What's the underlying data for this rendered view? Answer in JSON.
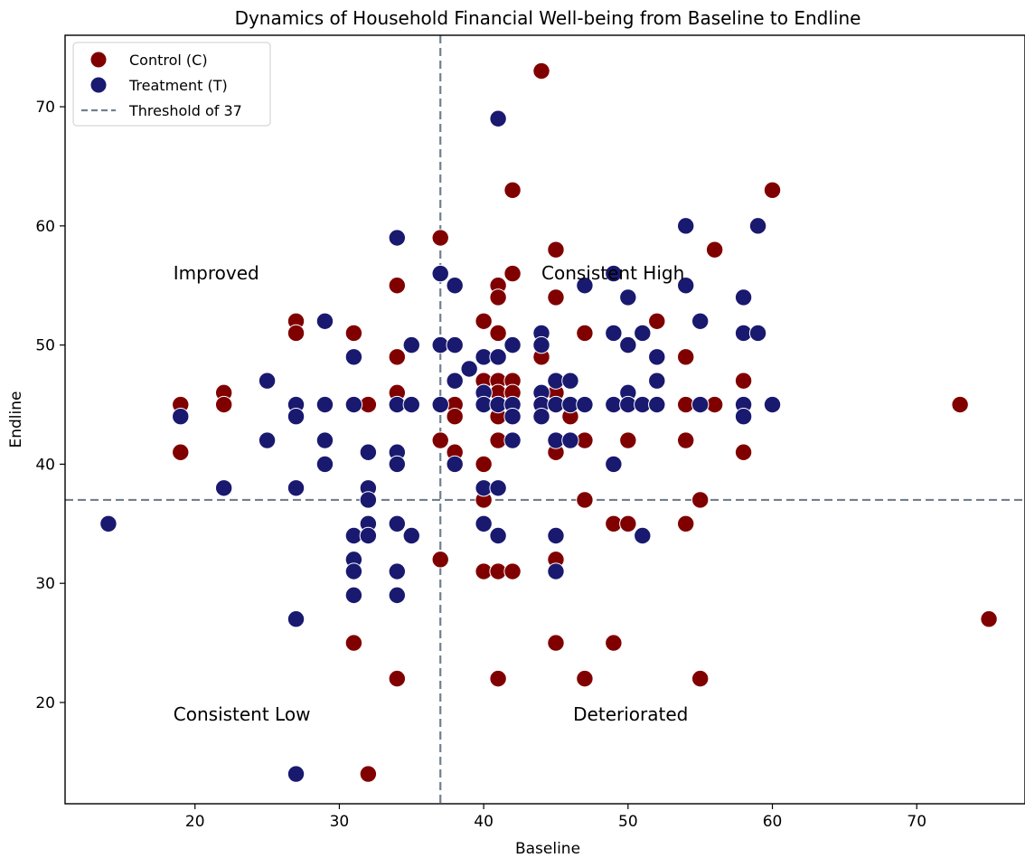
{
  "chart_data": {
    "type": "scatter",
    "title": "Dynamics of Household Financial Well-being from Baseline to Endline",
    "xlabel": "Baseline",
    "ylabel": "Endline",
    "xlim": [
      11,
      77.5
    ],
    "ylim": [
      11.5,
      76
    ],
    "xticks": [
      20,
      30,
      40,
      50,
      60,
      70
    ],
    "yticks": [
      20,
      30,
      40,
      50,
      60,
      70
    ],
    "threshold": 37,
    "legend": {
      "position": "top-left",
      "entries": [
        "Control (C)",
        "Treatment (T)",
        "Threshold of 37"
      ]
    },
    "quadrant_labels": [
      {
        "text": "Improved",
        "x": 18.5,
        "y": 55.5
      },
      {
        "text": "Consistent High",
        "x": 44,
        "y": 55.5
      },
      {
        "text": "Consistent Low",
        "x": 18.5,
        "y": 18.5
      },
      {
        "text": "Deteriorated",
        "x": 46.2,
        "y": 18.5
      }
    ],
    "colors": {
      "control": "#800000",
      "treatment": "#191970",
      "threshold": "#708090"
    },
    "series": [
      {
        "name": "Control (C)",
        "points": [
          [
            19,
            45
          ],
          [
            19,
            41
          ],
          [
            22,
            46
          ],
          [
            22,
            45
          ],
          [
            27,
            52
          ],
          [
            27,
            51
          ],
          [
            31,
            51
          ],
          [
            31,
            45
          ],
          [
            32,
            45
          ],
          [
            31,
            25
          ],
          [
            32,
            14
          ],
          [
            34,
            55
          ],
          [
            34,
            49
          ],
          [
            34,
            46
          ],
          [
            34,
            22
          ],
          [
            37,
            59
          ],
          [
            37,
            42
          ],
          [
            37,
            32
          ],
          [
            38,
            45
          ],
          [
            38,
            44
          ],
          [
            38,
            41
          ],
          [
            40,
            52
          ],
          [
            40,
            47
          ],
          [
            40,
            46
          ],
          [
            40,
            40
          ],
          [
            40,
            37
          ],
          [
            40,
            31
          ],
          [
            41,
            55
          ],
          [
            41,
            54
          ],
          [
            41,
            51
          ],
          [
            41,
            47
          ],
          [
            41,
            46
          ],
          [
            41,
            45
          ],
          [
            41,
            44
          ],
          [
            41,
            42
          ],
          [
            41,
            31
          ],
          [
            41,
            22
          ],
          [
            42,
            63
          ],
          [
            42,
            56
          ],
          [
            42,
            47
          ],
          [
            42,
            46
          ],
          [
            42,
            31
          ],
          [
            44,
            73
          ],
          [
            44,
            49
          ],
          [
            45,
            58
          ],
          [
            45,
            54
          ],
          [
            45,
            46
          ],
          [
            45,
            41
          ],
          [
            45,
            32
          ],
          [
            45,
            25
          ],
          [
            46,
            44
          ],
          [
            47,
            51
          ],
          [
            47,
            42
          ],
          [
            47,
            37
          ],
          [
            47,
            22
          ],
          [
            49,
            35
          ],
          [
            49,
            25
          ],
          [
            50,
            42
          ],
          [
            50,
            35
          ],
          [
            52,
            52
          ],
          [
            54,
            49
          ],
          [
            54,
            45
          ],
          [
            54,
            42
          ],
          [
            54,
            35
          ],
          [
            55,
            37
          ],
          [
            55,
            22
          ],
          [
            56,
            58
          ],
          [
            56,
            45
          ],
          [
            58,
            47
          ],
          [
            58,
            41
          ],
          [
            60,
            63
          ],
          [
            73,
            45
          ],
          [
            75,
            27
          ]
        ]
      },
      {
        "name": "Treatment (T)",
        "points": [
          [
            14,
            35
          ],
          [
            19,
            44
          ],
          [
            22,
            38
          ],
          [
            25,
            47
          ],
          [
            25,
            42
          ],
          [
            27,
            45
          ],
          [
            27,
            44
          ],
          [
            27,
            38
          ],
          [
            27,
            27
          ],
          [
            27,
            14
          ],
          [
            29,
            52
          ],
          [
            29,
            45
          ],
          [
            29,
            42
          ],
          [
            29,
            40
          ],
          [
            31,
            49
          ],
          [
            31,
            45
          ],
          [
            31,
            34
          ],
          [
            31,
            32
          ],
          [
            31,
            31
          ],
          [
            31,
            29
          ],
          [
            32,
            41
          ],
          [
            32,
            38
          ],
          [
            32,
            37
          ],
          [
            32,
            35
          ],
          [
            32,
            34
          ],
          [
            34,
            59
          ],
          [
            34,
            45
          ],
          [
            34,
            41
          ],
          [
            34,
            40
          ],
          [
            34,
            35
          ],
          [
            34,
            31
          ],
          [
            34,
            29
          ],
          [
            35,
            50
          ],
          [
            35,
            45
          ],
          [
            35,
            34
          ],
          [
            37,
            56
          ],
          [
            37,
            50
          ],
          [
            37,
            45
          ],
          [
            38,
            55
          ],
          [
            38,
            50
          ],
          [
            38,
            47
          ],
          [
            38,
            40
          ],
          [
            39,
            48
          ],
          [
            40,
            49
          ],
          [
            40,
            46
          ],
          [
            40,
            45
          ],
          [
            40,
            38
          ],
          [
            40,
            35
          ],
          [
            41,
            69
          ],
          [
            41,
            49
          ],
          [
            41,
            45
          ],
          [
            41,
            38
          ],
          [
            41,
            34
          ],
          [
            42,
            50
          ],
          [
            42,
            45
          ],
          [
            42,
            44
          ],
          [
            42,
            42
          ],
          [
            44,
            51
          ],
          [
            44,
            50
          ],
          [
            44,
            46
          ],
          [
            44,
            45
          ],
          [
            44,
            44
          ],
          [
            45,
            47
          ],
          [
            45,
            45
          ],
          [
            45,
            42
          ],
          [
            45,
            34
          ],
          [
            45,
            31
          ],
          [
            46,
            47
          ],
          [
            46,
            45
          ],
          [
            46,
            42
          ],
          [
            47,
            55
          ],
          [
            47,
            45
          ],
          [
            49,
            56
          ],
          [
            49,
            51
          ],
          [
            49,
            45
          ],
          [
            49,
            40
          ],
          [
            50,
            54
          ],
          [
            50,
            50
          ],
          [
            50,
            46
          ],
          [
            50,
            45
          ],
          [
            51,
            51
          ],
          [
            51,
            45
          ],
          [
            51,
            34
          ],
          [
            52,
            49
          ],
          [
            52,
            47
          ],
          [
            52,
            45
          ],
          [
            54,
            60
          ],
          [
            54,
            55
          ],
          [
            55,
            52
          ],
          [
            55,
            45
          ],
          [
            58,
            54
          ],
          [
            58,
            51
          ],
          [
            58,
            45
          ],
          [
            58,
            44
          ],
          [
            59,
            60
          ],
          [
            59,
            51
          ],
          [
            60,
            45
          ]
        ]
      }
    ]
  }
}
